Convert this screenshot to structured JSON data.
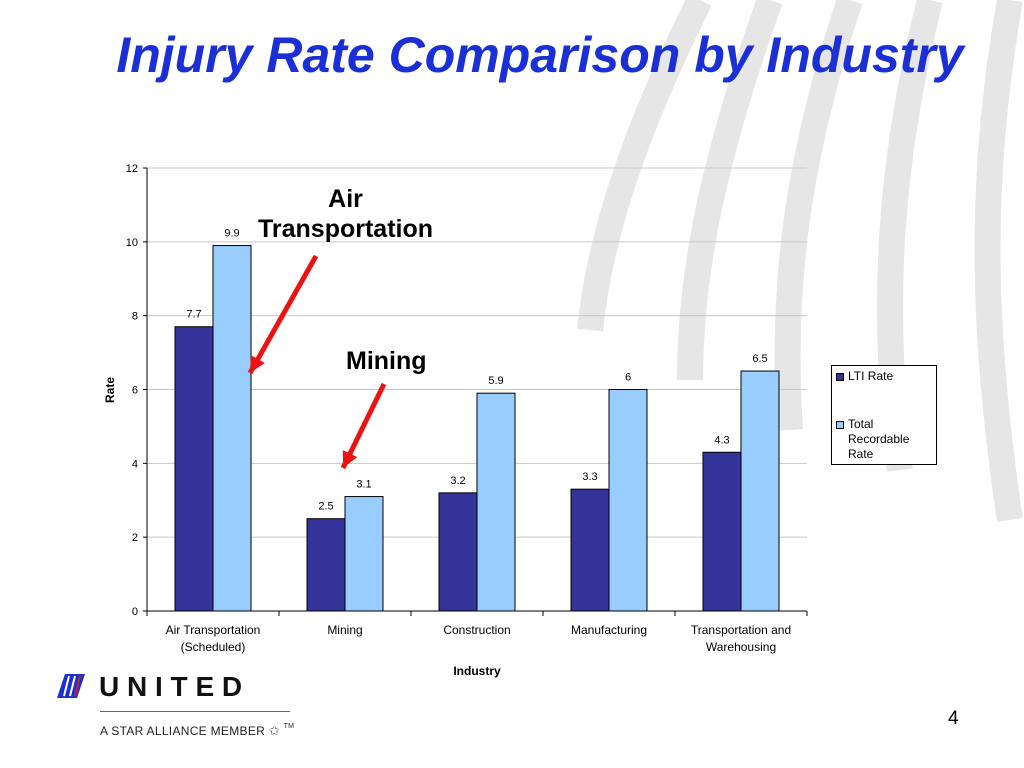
{
  "title": "Injury Rate Comparison by Industry",
  "page_number": "4",
  "logo": {
    "wordmark": "U N I T E D",
    "tagline": "A STAR ALLIANCE MEMBER",
    "tm": "TM"
  },
  "callouts": [
    {
      "text_line1": "Air",
      "text_line2": "Transportation"
    },
    {
      "text_line1": "Mining"
    }
  ],
  "colors": {
    "lti": "#333399",
    "total": "#99ccff",
    "title": "#1a2fd6",
    "arrow": "#ee1111"
  },
  "chart_data": {
    "type": "bar",
    "categories": [
      "Air Transportation (Scheduled)",
      "Mining",
      "Construction",
      "Manufacturing",
      "Transportation and Warehousing"
    ],
    "category_lines": [
      [
        "Air Transportation",
        "(Scheduled)"
      ],
      [
        "Mining"
      ],
      [
        "Construction"
      ],
      [
        "Manufacturing"
      ],
      [
        "Transportation and",
        "Warehousing"
      ]
    ],
    "series": [
      {
        "name": "LTI Rate",
        "values": [
          7.7,
          2.5,
          3.2,
          3.3,
          4.3
        ],
        "labels": [
          "7.7",
          "2.5",
          "3.2",
          "3.3",
          "4.3"
        ]
      },
      {
        "name": "Total Recordable Rate",
        "values": [
          9.9,
          3.1,
          5.9,
          6,
          6.5
        ],
        "labels": [
          "9.9",
          "3.1",
          "5.9",
          "6",
          "6.5"
        ]
      }
    ],
    "xlabel": "Industry",
    "ylabel": "Rate",
    "ylim": [
      0,
      12
    ],
    "yticks": [
      0,
      2,
      4,
      6,
      8,
      10,
      12
    ],
    "grid": true,
    "legend": "right"
  }
}
